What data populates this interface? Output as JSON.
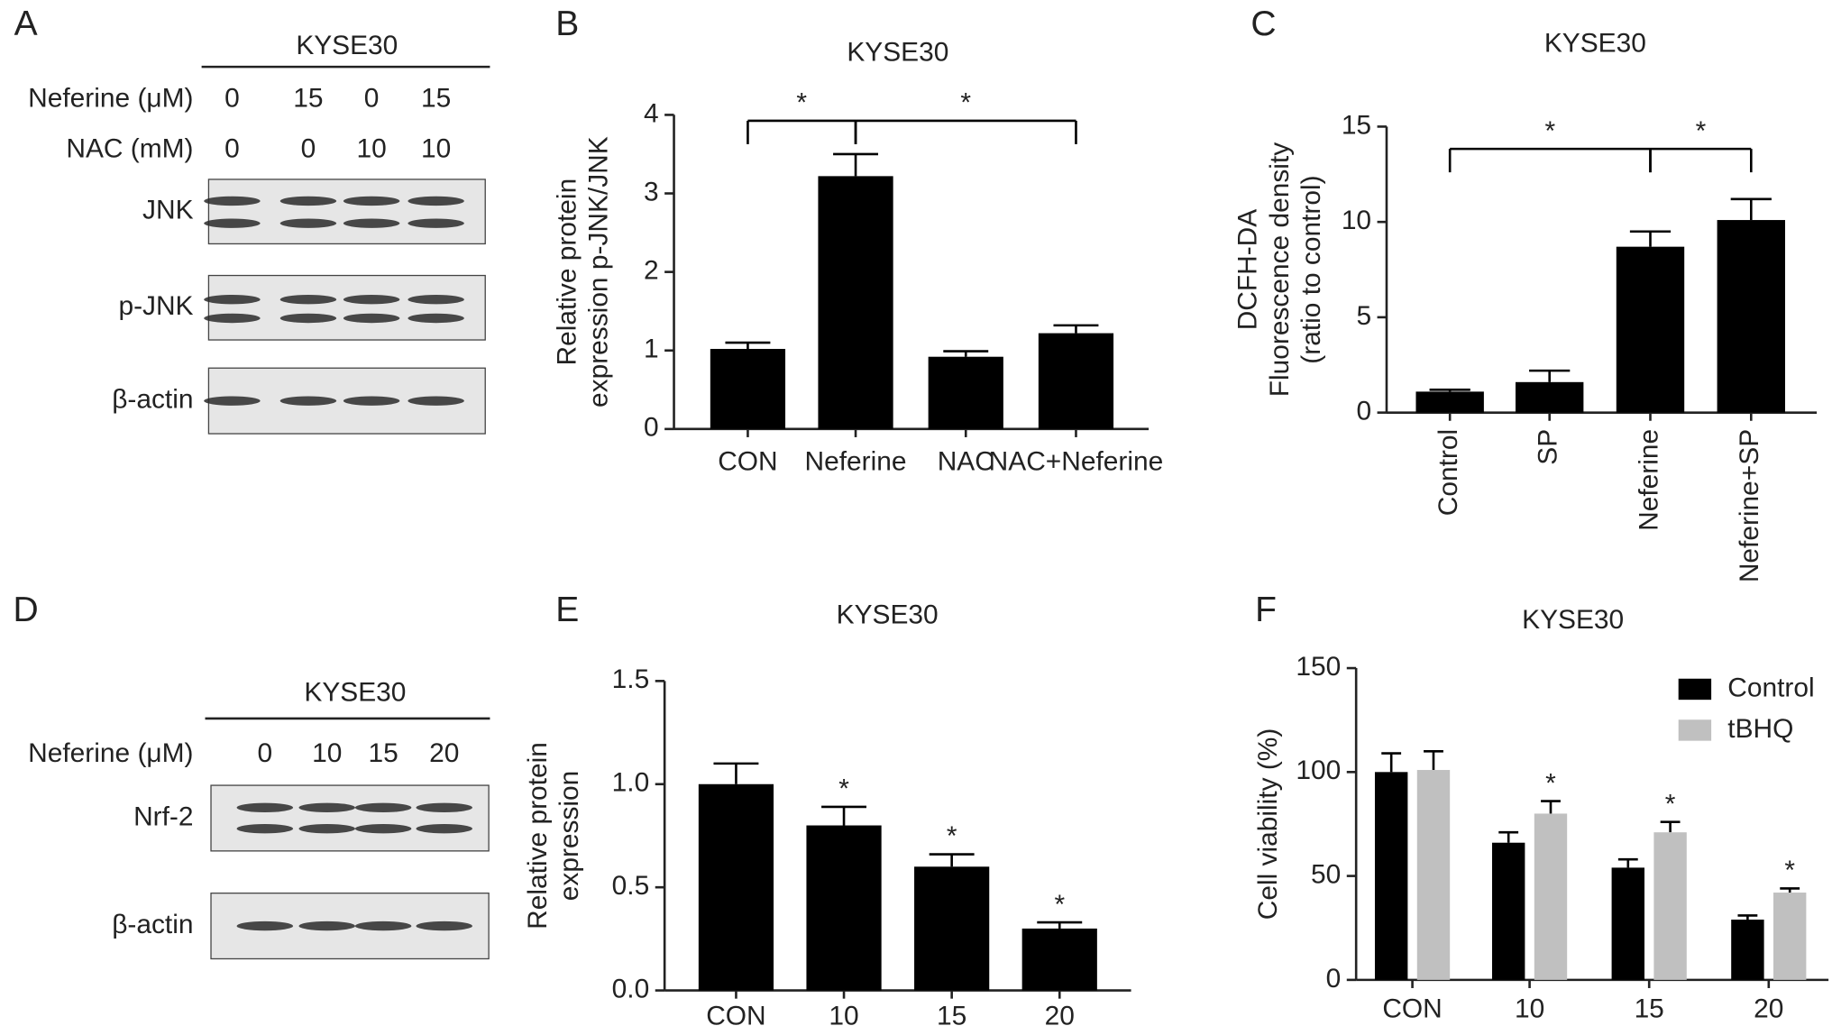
{
  "blots": [
    {
      "panel": "A",
      "header": "KYSE30",
      "conditions": [
        {
          "label": "Neferine (μM)",
          "values": [
            "0",
            "15",
            "0",
            "15"
          ]
        },
        {
          "label": "NAC (mM)",
          "values": [
            "0",
            "0",
            "10",
            "10"
          ]
        }
      ],
      "bands": [
        "JNK",
        "p-JNK",
        "β-actin"
      ]
    },
    {
      "panel": "D",
      "header": "KYSE30",
      "conditions": [
        {
          "label": "Neferine (μM)",
          "values": [
            "0",
            "10",
            "15",
            "20"
          ]
        }
      ],
      "bands": [
        "Nrf-2",
        "β-actin"
      ]
    }
  ],
  "chart_data": [
    {
      "type": "bar",
      "panel": "B",
      "title": "KYSE30",
      "ylabel": [
        "Relative protein",
        "expression p-JNK/JNK"
      ],
      "categories": [
        "CON",
        "Neferine",
        "NAC",
        "NAC+Neferine"
      ],
      "values": [
        1.02,
        3.22,
        0.92,
        1.22
      ],
      "errors": [
        0.08,
        0.28,
        0.07,
        0.1
      ],
      "color": "#000000",
      "ylim": [
        0,
        4
      ],
      "yticks": [
        0,
        1,
        2,
        3,
        4
      ],
      "brackets": [
        {
          "from": 0,
          "to": 1,
          "label": "*"
        },
        {
          "from": 1,
          "to": 3,
          "label": "*"
        }
      ]
    },
    {
      "type": "bar",
      "panel": "C",
      "title": "KYSE30",
      "ylabel": [
        "DCFH-DA",
        "Fluorescence density",
        "(ratio to control)"
      ],
      "categories": [
        "Control",
        "SP",
        "Neferine",
        "Neferine+SP"
      ],
      "values": [
        1.1,
        1.6,
        8.7,
        10.1
      ],
      "errors": [
        0.1,
        0.6,
        0.8,
        1.1
      ],
      "color": "#000000",
      "ylim": [
        0,
        15
      ],
      "yticks": [
        0,
        5,
        10,
        15
      ],
      "brackets": [
        {
          "from": 0,
          "to": 2,
          "label": "*"
        },
        {
          "from": 2,
          "to": 3,
          "label": "*"
        }
      ]
    },
    {
      "type": "bar",
      "panel": "E",
      "title": "KYSE30",
      "ylabel": [
        "Relative protein",
        "expression"
      ],
      "categories": [
        "CON",
        "10",
        "15",
        "20"
      ],
      "values": [
        1.0,
        0.8,
        0.6,
        0.3
      ],
      "errors": [
        0.1,
        0.09,
        0.06,
        0.03
      ],
      "sig": [
        null,
        "*",
        "*",
        "*"
      ],
      "color": "#000000",
      "ylim": [
        0,
        1.5
      ],
      "yticks": [
        {
          "value": 0,
          "label": "0.0"
        },
        {
          "value": 0.5,
          "label": "0.5"
        },
        {
          "value": 1,
          "label": "1.0"
        },
        {
          "value": 1.5,
          "label": "1.5"
        }
      ]
    },
    {
      "type": "grouped_bar",
      "panel": "F",
      "title": "KYSE30",
      "ylabel": [
        "Cell viability (%)"
      ],
      "categories": [
        "CON",
        "10",
        "15",
        "20"
      ],
      "series": [
        {
          "name": "Control",
          "color": "#000000",
          "values": [
            100,
            66,
            54,
            29
          ],
          "errors": [
            9,
            5,
            4,
            2
          ]
        },
        {
          "name": "tBHQ",
          "color": "#c0c0c0",
          "values": [
            101,
            80,
            71,
            42
          ],
          "errors": [
            9,
            6,
            5,
            2
          ],
          "sig": [
            null,
            "*",
            "*",
            "*"
          ]
        }
      ],
      "ylim": [
        0,
        150
      ],
      "yticks": [
        0,
        50,
        100,
        150
      ],
      "legend": "upper right"
    }
  ]
}
